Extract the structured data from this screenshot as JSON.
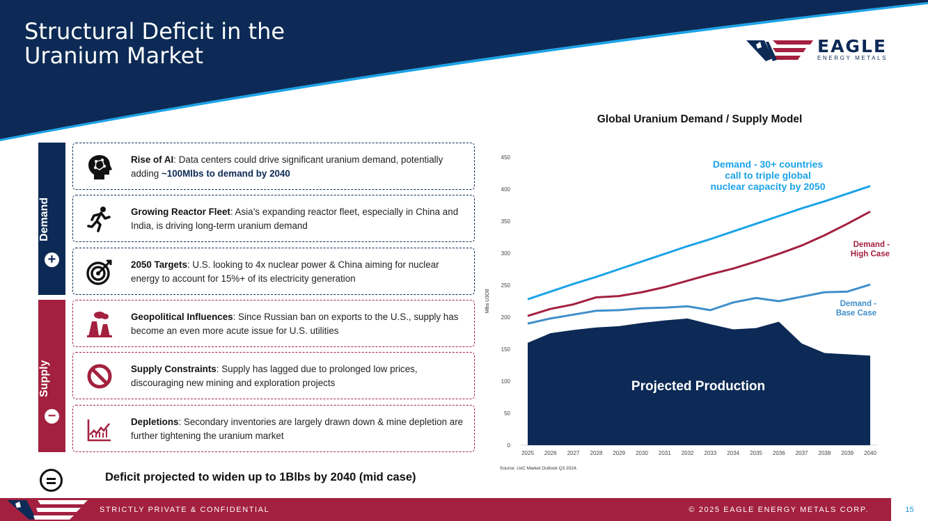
{
  "header": {
    "title_line1": "Structural Deficit in the",
    "title_line2": "Uranium Market",
    "logo_word": "EAGLE",
    "logo_sub": "ENERGY METALS"
  },
  "sidebar": {
    "demand_label": "Demand",
    "demand_sign": "+",
    "supply_label": "Supply",
    "supply_sign": "−"
  },
  "cards": [
    {
      "icon": "ai-head-icon",
      "title": "Rise of AI",
      "text": ": Data centers could drive significant uranium demand, potentially adding ",
      "highlight": "~100Mlbs to demand by 2040"
    },
    {
      "icon": "runner-icon",
      "title": "Growing Reactor Fleet",
      "text": ": Asia’s expanding reactor fleet, especially in China and India, is driving long-term uranium demand"
    },
    {
      "icon": "target-icon",
      "title": "2050 Targets",
      "text": ": U.S. looking to 4x nuclear power & China aiming for nuclear energy to account for 15%+ of its electricity generation"
    },
    {
      "icon": "factory-icon",
      "title": "Geopolitical Influences",
      "text": ": Since Russian ban on exports to the U.S., supply has become an even more acute issue for U.S. utilities"
    },
    {
      "icon": "prohibited-icon",
      "title": "Supply Constraints",
      "text": ": Supply has lagged due to prolonged low prices, discouraging new mining and exploration projects"
    },
    {
      "icon": "decline-chart-icon",
      "title": "Depletions",
      "text": ": Secondary inventories are largely drawn down & mine depletion are further tightening the uranium market"
    }
  ],
  "deficit": {
    "icon": "equals-icon",
    "text": "Deficit projected to widen up to 1Blbs by 2040 (mid case)"
  },
  "chart_data": {
    "type": "line",
    "title": "Global Uranium Demand / Supply Model",
    "ylabel": "Mlbs U3O8",
    "xlabel": "",
    "ylim": [
      0,
      450
    ],
    "yticks": [
      0,
      50,
      100,
      150,
      200,
      250,
      300,
      350,
      400,
      450
    ],
    "categories": [
      "2025",
      "2026",
      "2027",
      "2028",
      "2029",
      "2030",
      "2031",
      "2032",
      "2033",
      "2034",
      "2035",
      "2036",
      "2037",
      "2038",
      "2039",
      "2040"
    ],
    "series": [
      {
        "name": "Demand - 30+ countries call to triple global nuclear capacity by 2050",
        "kind": "line",
        "color": "#1aa3e8",
        "values": [
          228,
          240,
          252,
          263,
          275,
          287,
          299,
          311,
          322,
          334,
          346,
          358,
          370,
          381,
          393,
          405
        ]
      },
      {
        "name": "Demand - High Case",
        "kind": "line",
        "color": "#a3203f",
        "values": [
          202,
          213,
          220,
          231,
          233,
          239,
          247,
          257,
          267,
          276,
          287,
          299,
          312,
          328,
          346,
          365
        ]
      },
      {
        "name": "Demand - Base Case",
        "kind": "line",
        "color": "#3e8ecb",
        "values": [
          190,
          198,
          204,
          210,
          211,
          214,
          215,
          217,
          211,
          223,
          230,
          225,
          232,
          239,
          240,
          251
        ]
      },
      {
        "name": "Projected Production",
        "kind": "area",
        "color": "#0c2a55",
        "values": [
          160,
          175,
          180,
          184,
          186,
          191,
          195,
          198,
          189,
          181,
          183,
          193,
          159,
          144,
          142,
          140
        ]
      }
    ],
    "annotations": {
      "demand_triple": [
        "Demand - 30+ countries",
        "call to triple global",
        "nuclear capacity by 2050"
      ],
      "demand_high": [
        "Demand -",
        "High Case"
      ],
      "demand_base": [
        "Demand -",
        "Base Case"
      ],
      "production": "Projected Production"
    },
    "source": "Source: UxC Market Outlook Q3 2024."
  },
  "footer": {
    "left": "STRICTLY PRIVATE & CONFIDENTIAL",
    "right": "© 2025 EAGLE ENERGY METALS CORP.",
    "page": "15"
  },
  "colors": {
    "navy": "#0c2a55",
    "red": "#a3203f",
    "light_blue": "#1aa3e8",
    "mid_blue": "#3e8ecb"
  }
}
